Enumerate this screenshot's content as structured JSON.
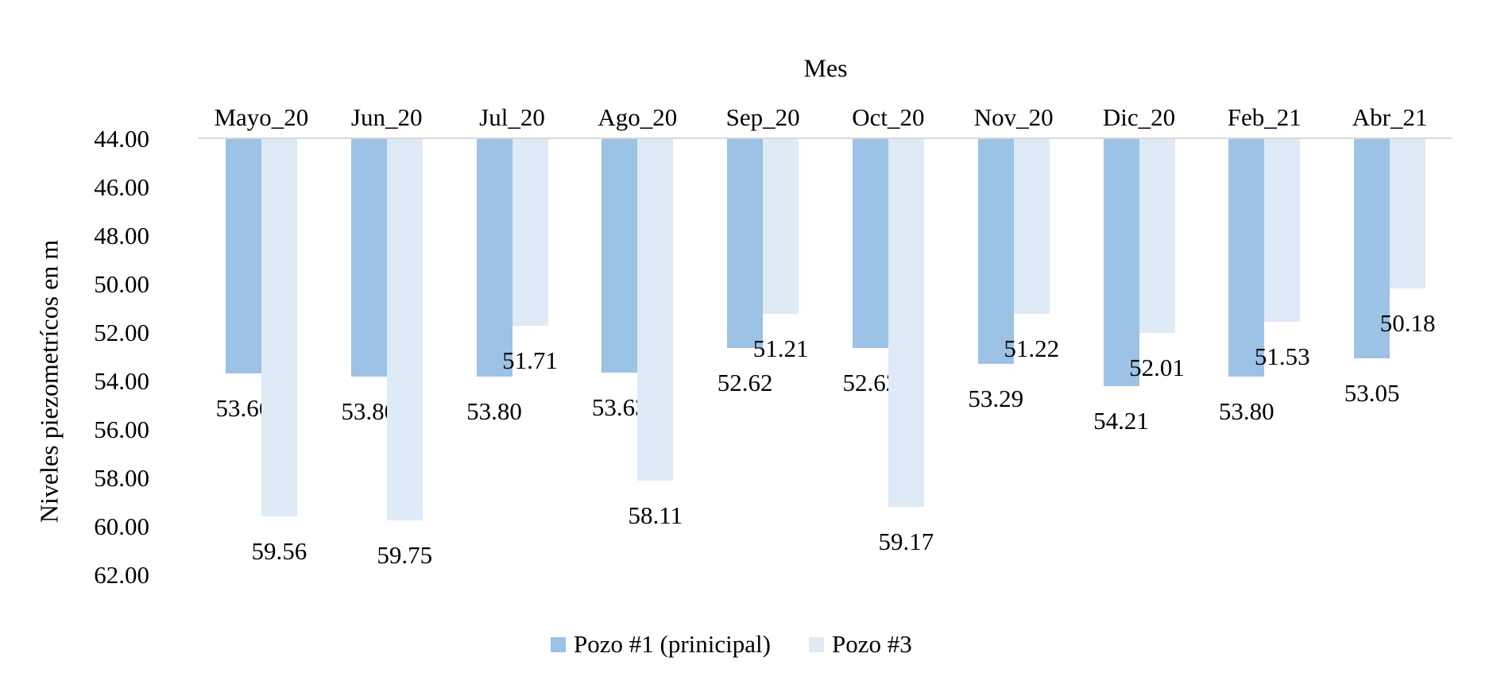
{
  "chart_data": {
    "type": "bar",
    "title": "Mes",
    "ylabel": "Niveles piezometrícos en m",
    "categories": [
      "Mayo_20",
      "Jun_20",
      "Jul_20",
      "Ago_20",
      "Sep_20",
      "Oct_20",
      "Nov_20",
      "Dic_20",
      "Feb_21",
      "Abr_21"
    ],
    "series": [
      {
        "name": "Pozo #1 (prinicipal)",
        "color": "#9CC2E5",
        "values": [
          53.66,
          53.8,
          53.8,
          53.63,
          52.62,
          52.62,
          53.29,
          54.21,
          53.8,
          53.05
        ]
      },
      {
        "name": "Pozo #3",
        "color": "#DEEAF6",
        "values": [
          59.56,
          59.75,
          51.71,
          58.11,
          51.21,
          59.17,
          51.22,
          52.01,
          51.53,
          50.18
        ]
      }
    ],
    "yticks": [
      "44.00",
      "46.00",
      "48.00",
      "50.00",
      "52.00",
      "54.00",
      "56.00",
      "58.00",
      "60.00",
      "62.00"
    ],
    "ylim": [
      44,
      62
    ],
    "y_axis_reversed": true,
    "bars_hang_from_top_axis": true,
    "data_labels_format": "0.00",
    "legend_position": "bottom",
    "grid": false,
    "axis_line_color": "#D9D9D9",
    "text_color": "#000000",
    "background_color": "#FFFFFF"
  }
}
